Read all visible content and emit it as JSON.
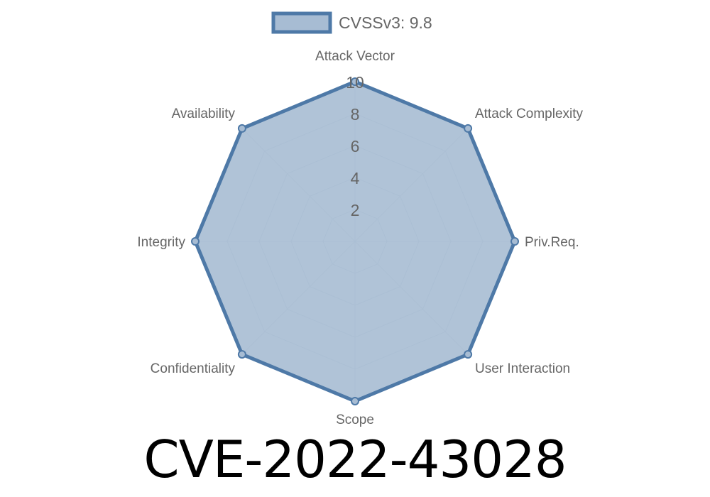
{
  "chart_data": {
    "type": "radar",
    "legend": {
      "label": "CVSSv3: 9.8",
      "placement": "top"
    },
    "axes": [
      "Attack Vector",
      "Attack Complexity",
      "Priv.Req.",
      "User Interaction",
      "Scope",
      "Confidentiality",
      "Integrity",
      "Availability"
    ],
    "series": [
      {
        "name": "CVSSv3: 9.8",
        "values": [
          10,
          10,
          10,
          10,
          10,
          10,
          10,
          10
        ]
      }
    ],
    "rlim": [
      0,
      10
    ],
    "rticks": [
      "2",
      "4",
      "6",
      "8",
      "10"
    ],
    "grid": true,
    "colors": {
      "stroke": "#4e79a7",
      "fill": "#a7bcd3",
      "grid": "#c9d2dc",
      "label": "#666666"
    }
  },
  "caption": "CVE-2022-43028"
}
